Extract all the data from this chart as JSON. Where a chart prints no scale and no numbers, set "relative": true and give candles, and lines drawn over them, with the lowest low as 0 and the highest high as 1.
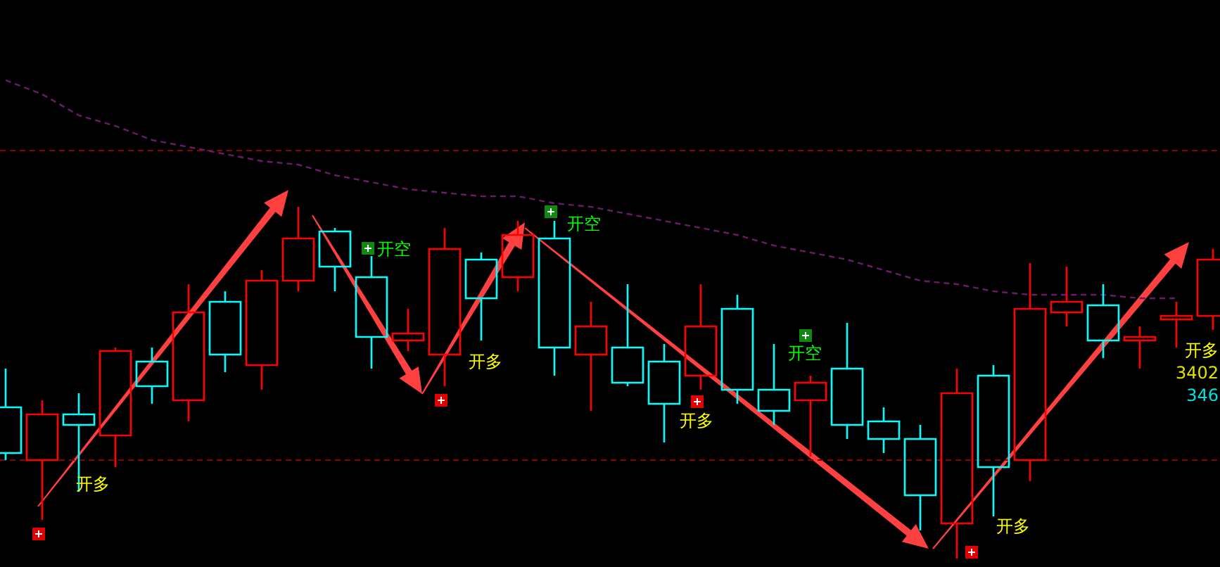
{
  "chart_data": {
    "type": "candlestick",
    "relative": true,
    "legend": false,
    "categories": [
      null,
      null,
      null,
      null,
      null,
      null,
      null,
      null,
      null,
      null,
      null,
      null,
      null,
      null,
      null,
      null,
      null,
      null,
      null,
      null,
      null,
      null,
      null,
      null,
      null,
      null,
      null,
      null,
      null,
      null,
      null,
      null,
      null,
      null
    ],
    "ohlc": [
      [
        0.43,
        0.54,
        0.28,
        0.3
      ],
      [
        0.28,
        0.45,
        0.11,
        0.41
      ],
      [
        0.41,
        0.47,
        0.19,
        0.38
      ],
      [
        0.35,
        0.6,
        0.26,
        0.59
      ],
      [
        0.56,
        0.6,
        0.44,
        0.49
      ],
      [
        0.45,
        0.78,
        0.39,
        0.7
      ],
      [
        0.73,
        0.76,
        0.53,
        0.58
      ],
      [
        0.55,
        0.82,
        0.48,
        0.79
      ],
      [
        0.79,
        1,
        0.76,
        0.91
      ],
      [
        0.93,
        0.94,
        0.76,
        0.83
      ],
      [
        0.8,
        0.86,
        0.54,
        0.63
      ],
      [
        0.62,
        0.71,
        0.59,
        0.64
      ],
      [
        0.58,
        0.94,
        0.49,
        0.88
      ],
      [
        0.85,
        0.87,
        0.62,
        0.74
      ],
      [
        0.8,
        0.96,
        0.76,
        0.92
      ],
      [
        0.91,
        0.96,
        0.52,
        0.6
      ],
      [
        0.58,
        0.73,
        0.42,
        0.66
      ],
      [
        0.6,
        0.78,
        0.49,
        0.5
      ],
      [
        0.56,
        0.61,
        0.33,
        0.44
      ],
      [
        0.52,
        0.78,
        0.48,
        0.66
      ],
      [
        0.71,
        0.75,
        0.44,
        0.48
      ],
      [
        0.48,
        0.61,
        0.38,
        0.42
      ],
      [
        0.45,
        0.52,
        0.29,
        0.5
      ],
      [
        0.54,
        0.67,
        0.34,
        0.38
      ],
      [
        0.39,
        0.43,
        0.3,
        0.34
      ],
      [
        0.34,
        0.38,
        0.08,
        0.18
      ],
      [
        0.1,
        0.54,
        0,
        0.47
      ],
      [
        0.52,
        0.55,
        0.12,
        0.26
      ],
      [
        0.28,
        0.84,
        0.22,
        0.71
      ],
      [
        0.7,
        0.83,
        0.66,
        0.73
      ],
      [
        0.72,
        0.78,
        0.57,
        0.62
      ],
      [
        0.62,
        0.66,
        0.54,
        0.63
      ],
      [
        0.68,
        0.73,
        0.6,
        0.69
      ],
      [
        0.69,
        0.88,
        0.65,
        0.85
      ]
    ],
    "colors": [
      "#00ffff",
      "#ff0000",
      "#00ffff",
      "#ff0000",
      "#00ffff",
      "#ff0000",
      "#00ffff",
      "#ff0000",
      "#ff0000",
      "#00ffff",
      "#00ffff",
      "#ff0000",
      "#ff0000",
      "#00ffff",
      "#ff0000",
      "#00ffff",
      "#ff0000",
      "#00ffff",
      "#00ffff",
      "#ff0000",
      "#00ffff",
      "#00ffff",
      "#ff0000",
      "#00ffff",
      "#00ffff",
      "#00ffff",
      "#ff0000",
      "#00ffff",
      "#ff0000",
      "#ff0000",
      "#00ffff",
      "#ff0000",
      "#ff0000",
      "#ff0000"
    ],
    "series": [
      {
        "type": "line",
        "color": "#6a1b6a",
        "line_style": "dashed",
        "values": [
          1.36,
          1.32,
          1.26,
          1.23,
          1.19,
          1.17,
          1.15,
          1.13,
          1.12,
          1.09,
          1.07,
          1.05,
          1.04,
          1.03,
          1.03,
          1.01,
          1,
          0.98,
          0.96,
          0.94,
          0.92,
          0.89,
          0.87,
          0.85,
          0.82,
          0.79,
          0.78,
          0.76,
          0.75,
          0.75,
          0.75,
          0.74,
          0.74,
          null
        ]
      }
    ],
    "ref_lines": [
      {
        "axis": "y",
        "value": 1.16,
        "color": "#8b0000",
        "line_style": "dashed"
      },
      {
        "axis": "y",
        "value": 0.28,
        "color": "#8b0000",
        "line_style": "dashed"
      }
    ],
    "annotations": [
      "开多",
      "开空",
      "开多",
      "开空",
      "开多",
      "开空",
      "开多",
      "开多",
      "3402",
      "346"
    ]
  }
}
